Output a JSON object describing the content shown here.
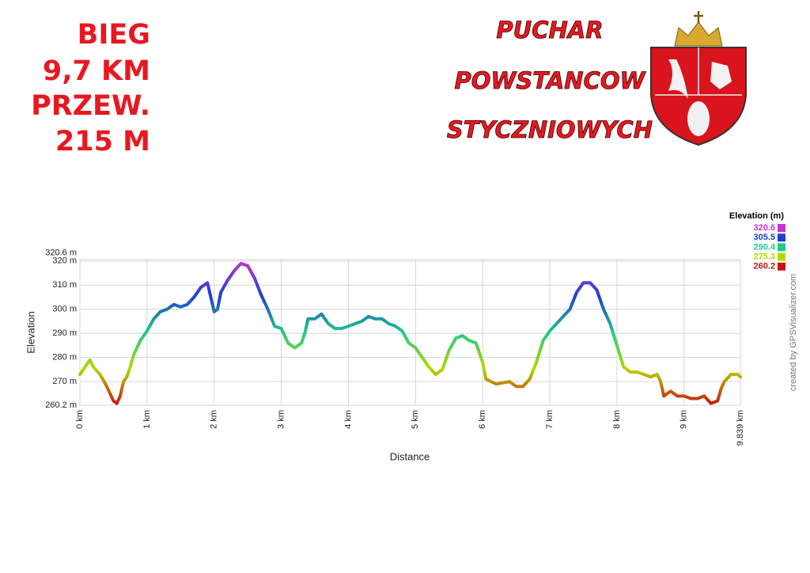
{
  "header": {
    "left_lines": [
      "BIEG",
      "9,7 KM",
      "PRZEW.",
      "215 M"
    ],
    "right_lines": [
      "PUCHAR",
      "POWSTANCOW",
      "STYCZNIOWYCH"
    ]
  },
  "credit": "created by GPSVisualizer.com",
  "chart_data": {
    "type": "line",
    "x_label": "Distance",
    "y_label": "Elevation",
    "x": [
      0,
      0.1,
      0.15,
      0.2,
      0.3,
      0.4,
      0.5,
      0.55,
      0.6,
      0.65,
      0.7,
      0.75,
      0.8,
      0.9,
      1.0,
      1.1,
      1.2,
      1.3,
      1.4,
      1.5,
      1.6,
      1.7,
      1.8,
      1.9,
      1.95,
      2.0,
      2.05,
      2.1,
      2.2,
      2.3,
      2.4,
      2.5,
      2.6,
      2.7,
      2.8,
      2.9,
      3.0,
      3.1,
      3.2,
      3.3,
      3.35,
      3.4,
      3.5,
      3.6,
      3.7,
      3.8,
      3.9,
      4.0,
      4.1,
      4.2,
      4.3,
      4.4,
      4.5,
      4.6,
      4.7,
      4.8,
      4.9,
      5.0,
      5.1,
      5.2,
      5.3,
      5.4,
      5.5,
      5.6,
      5.7,
      5.8,
      5.9,
      6.0,
      6.05,
      6.2,
      6.4,
      6.5,
      6.6,
      6.7,
      6.8,
      6.9,
      7.0,
      7.1,
      7.2,
      7.3,
      7.4,
      7.5,
      7.6,
      7.7,
      7.8,
      7.9,
      8.0,
      8.1,
      8.2,
      8.3,
      8.4,
      8.5,
      8.6,
      8.65,
      8.7,
      8.8,
      8.9,
      9.0,
      9.1,
      9.2,
      9.3,
      9.4,
      9.5,
      9.55,
      9.6,
      9.7,
      9.8,
      9.839
    ],
    "values": [
      273,
      277,
      279,
      276,
      273,
      268,
      262,
      261,
      264,
      270,
      272,
      276,
      281,
      287,
      291,
      296,
      299,
      300,
      302,
      301,
      302,
      305,
      309,
      311,
      305,
      299,
      300,
      307,
      312,
      316,
      319,
      318,
      313,
      306,
      300,
      293,
      292,
      286,
      284,
      286,
      290,
      296,
      296,
      298,
      294,
      292,
      292,
      293,
      294,
      295,
      297,
      296,
      296,
      294,
      293,
      291,
      286,
      284,
      280,
      276,
      273,
      275,
      283,
      288,
      289,
      287,
      286,
      278,
      271,
      269,
      270,
      268,
      268,
      271,
      278,
      287,
      291,
      294,
      297,
      300,
      307,
      311,
      311,
      308,
      300,
      294,
      285,
      276,
      274,
      274,
      273,
      272,
      273,
      270,
      264,
      266,
      264,
      264,
      263,
      263,
      264,
      261,
      262,
      267,
      270,
      273,
      273,
      272
    ],
    "xlim": [
      0,
      9.839
    ],
    "xticks": [
      {
        "value": 0,
        "label": "0 km"
      },
      {
        "value": 1,
        "label": "1 km"
      },
      {
        "value": 2,
        "label": "2 km"
      },
      {
        "value": 3,
        "label": "3 km"
      },
      {
        "value": 4,
        "label": "4 km"
      },
      {
        "value": 5,
        "label": "5 km"
      },
      {
        "value": 6,
        "label": "6 km"
      },
      {
        "value": 7,
        "label": "7 km"
      },
      {
        "value": 8,
        "label": "8 km"
      },
      {
        "value": 9,
        "label": "9 km"
      },
      {
        "value": 9.839,
        "label": "9.839 km"
      }
    ],
    "ylim": [
      260.2,
      320.6
    ],
    "yticks": [
      {
        "value": 260.2,
        "label": "260.2 m"
      },
      {
        "value": 270,
        "label": "270 m"
      },
      {
        "value": 280,
        "label": "280 m"
      },
      {
        "value": 290,
        "label": "290 m"
      },
      {
        "value": 300,
        "label": "300 m"
      },
      {
        "value": 310,
        "label": "310 m"
      },
      {
        "value": 320,
        "label": "320 m"
      },
      {
        "value": 320.6,
        "label": "320.6 m"
      }
    ],
    "grid": true,
    "colorbar": {
      "title": "Elevation (m)",
      "stops": [
        {
          "value": 320.6,
          "color": "#c832d2"
        },
        {
          "value": 305.5,
          "color": "#1f3fcf"
        },
        {
          "value": 290.4,
          "color": "#22c98a"
        },
        {
          "value": 275.3,
          "color": "#b5d800"
        },
        {
          "value": 260.2,
          "color": "#c81414"
        }
      ]
    }
  }
}
